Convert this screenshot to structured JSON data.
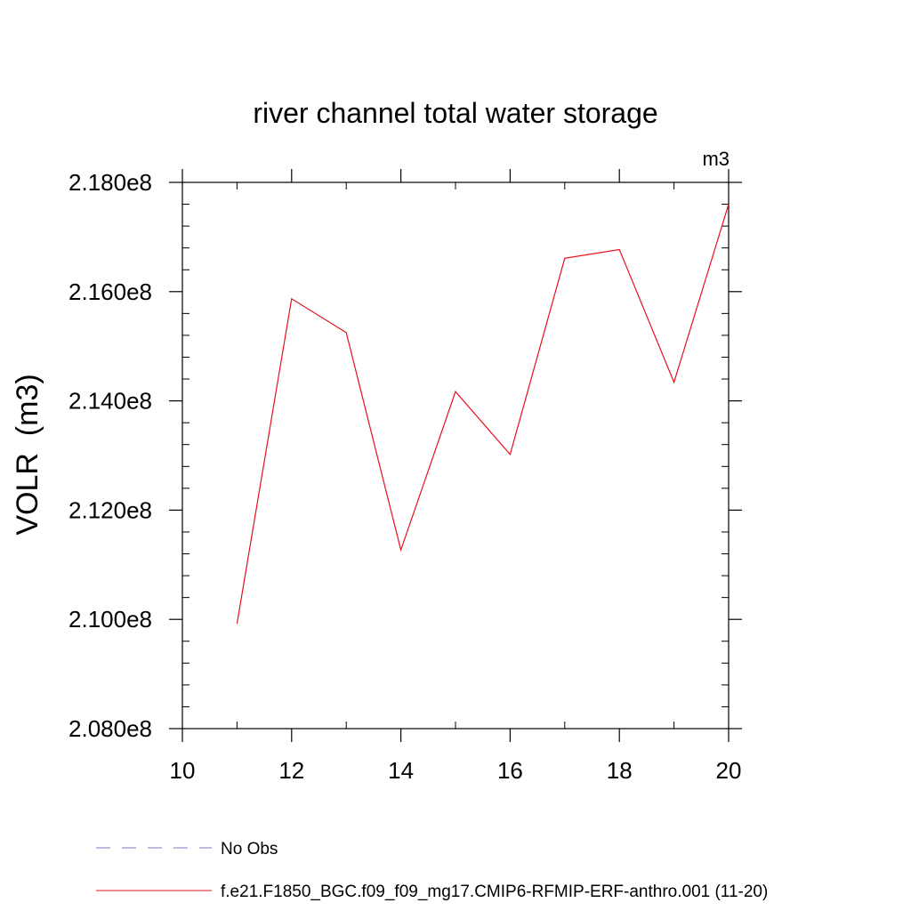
{
  "chart_data": {
    "type": "line",
    "title": "river channel total water storage",
    "units_label": "m3",
    "ylabel": "VOLR  (m3)",
    "xlabel": "",
    "xlim": [
      10,
      20
    ],
    "ylim": [
      208000000,
      218000000
    ],
    "x_ticks": [
      10,
      12,
      14,
      16,
      18,
      20
    ],
    "x_tick_labels": [
      "10",
      "12",
      "14",
      "16",
      "18",
      "20"
    ],
    "y_ticks": [
      208000000,
      210000000,
      212000000,
      214000000,
      216000000,
      218000000
    ],
    "y_tick_labels": [
      "2.080e8",
      "2.100e8",
      "2.120e8",
      "2.140e8",
      "2.160e8",
      "2.180e8"
    ],
    "grid": false,
    "legend_position": "bottom",
    "series": [
      {
        "name": "f.e21.F1850_BGC.f09_f09_mg17.CMIP6-RFMIP-ERF-anthro.001 (11-20)",
        "color": "#e8101c",
        "style": "solid",
        "x": [
          11,
          12,
          13,
          14,
          15,
          16,
          17,
          18,
          19,
          20
        ],
        "y": [
          209920000,
          215870000,
          215250000,
          211270000,
          214170000,
          213020000,
          216610000,
          216770000,
          214340000,
          217600000
        ]
      }
    ],
    "legend": [
      {
        "label": "No Obs",
        "color": "#7b78b8",
        "style": "dashed"
      },
      {
        "label": "f.e21.F1850_BGC.f09_f09_mg17.CMIP6-RFMIP-ERF-anthro.001 (11-20)",
        "color": "#e8101c",
        "style": "solid"
      }
    ]
  }
}
